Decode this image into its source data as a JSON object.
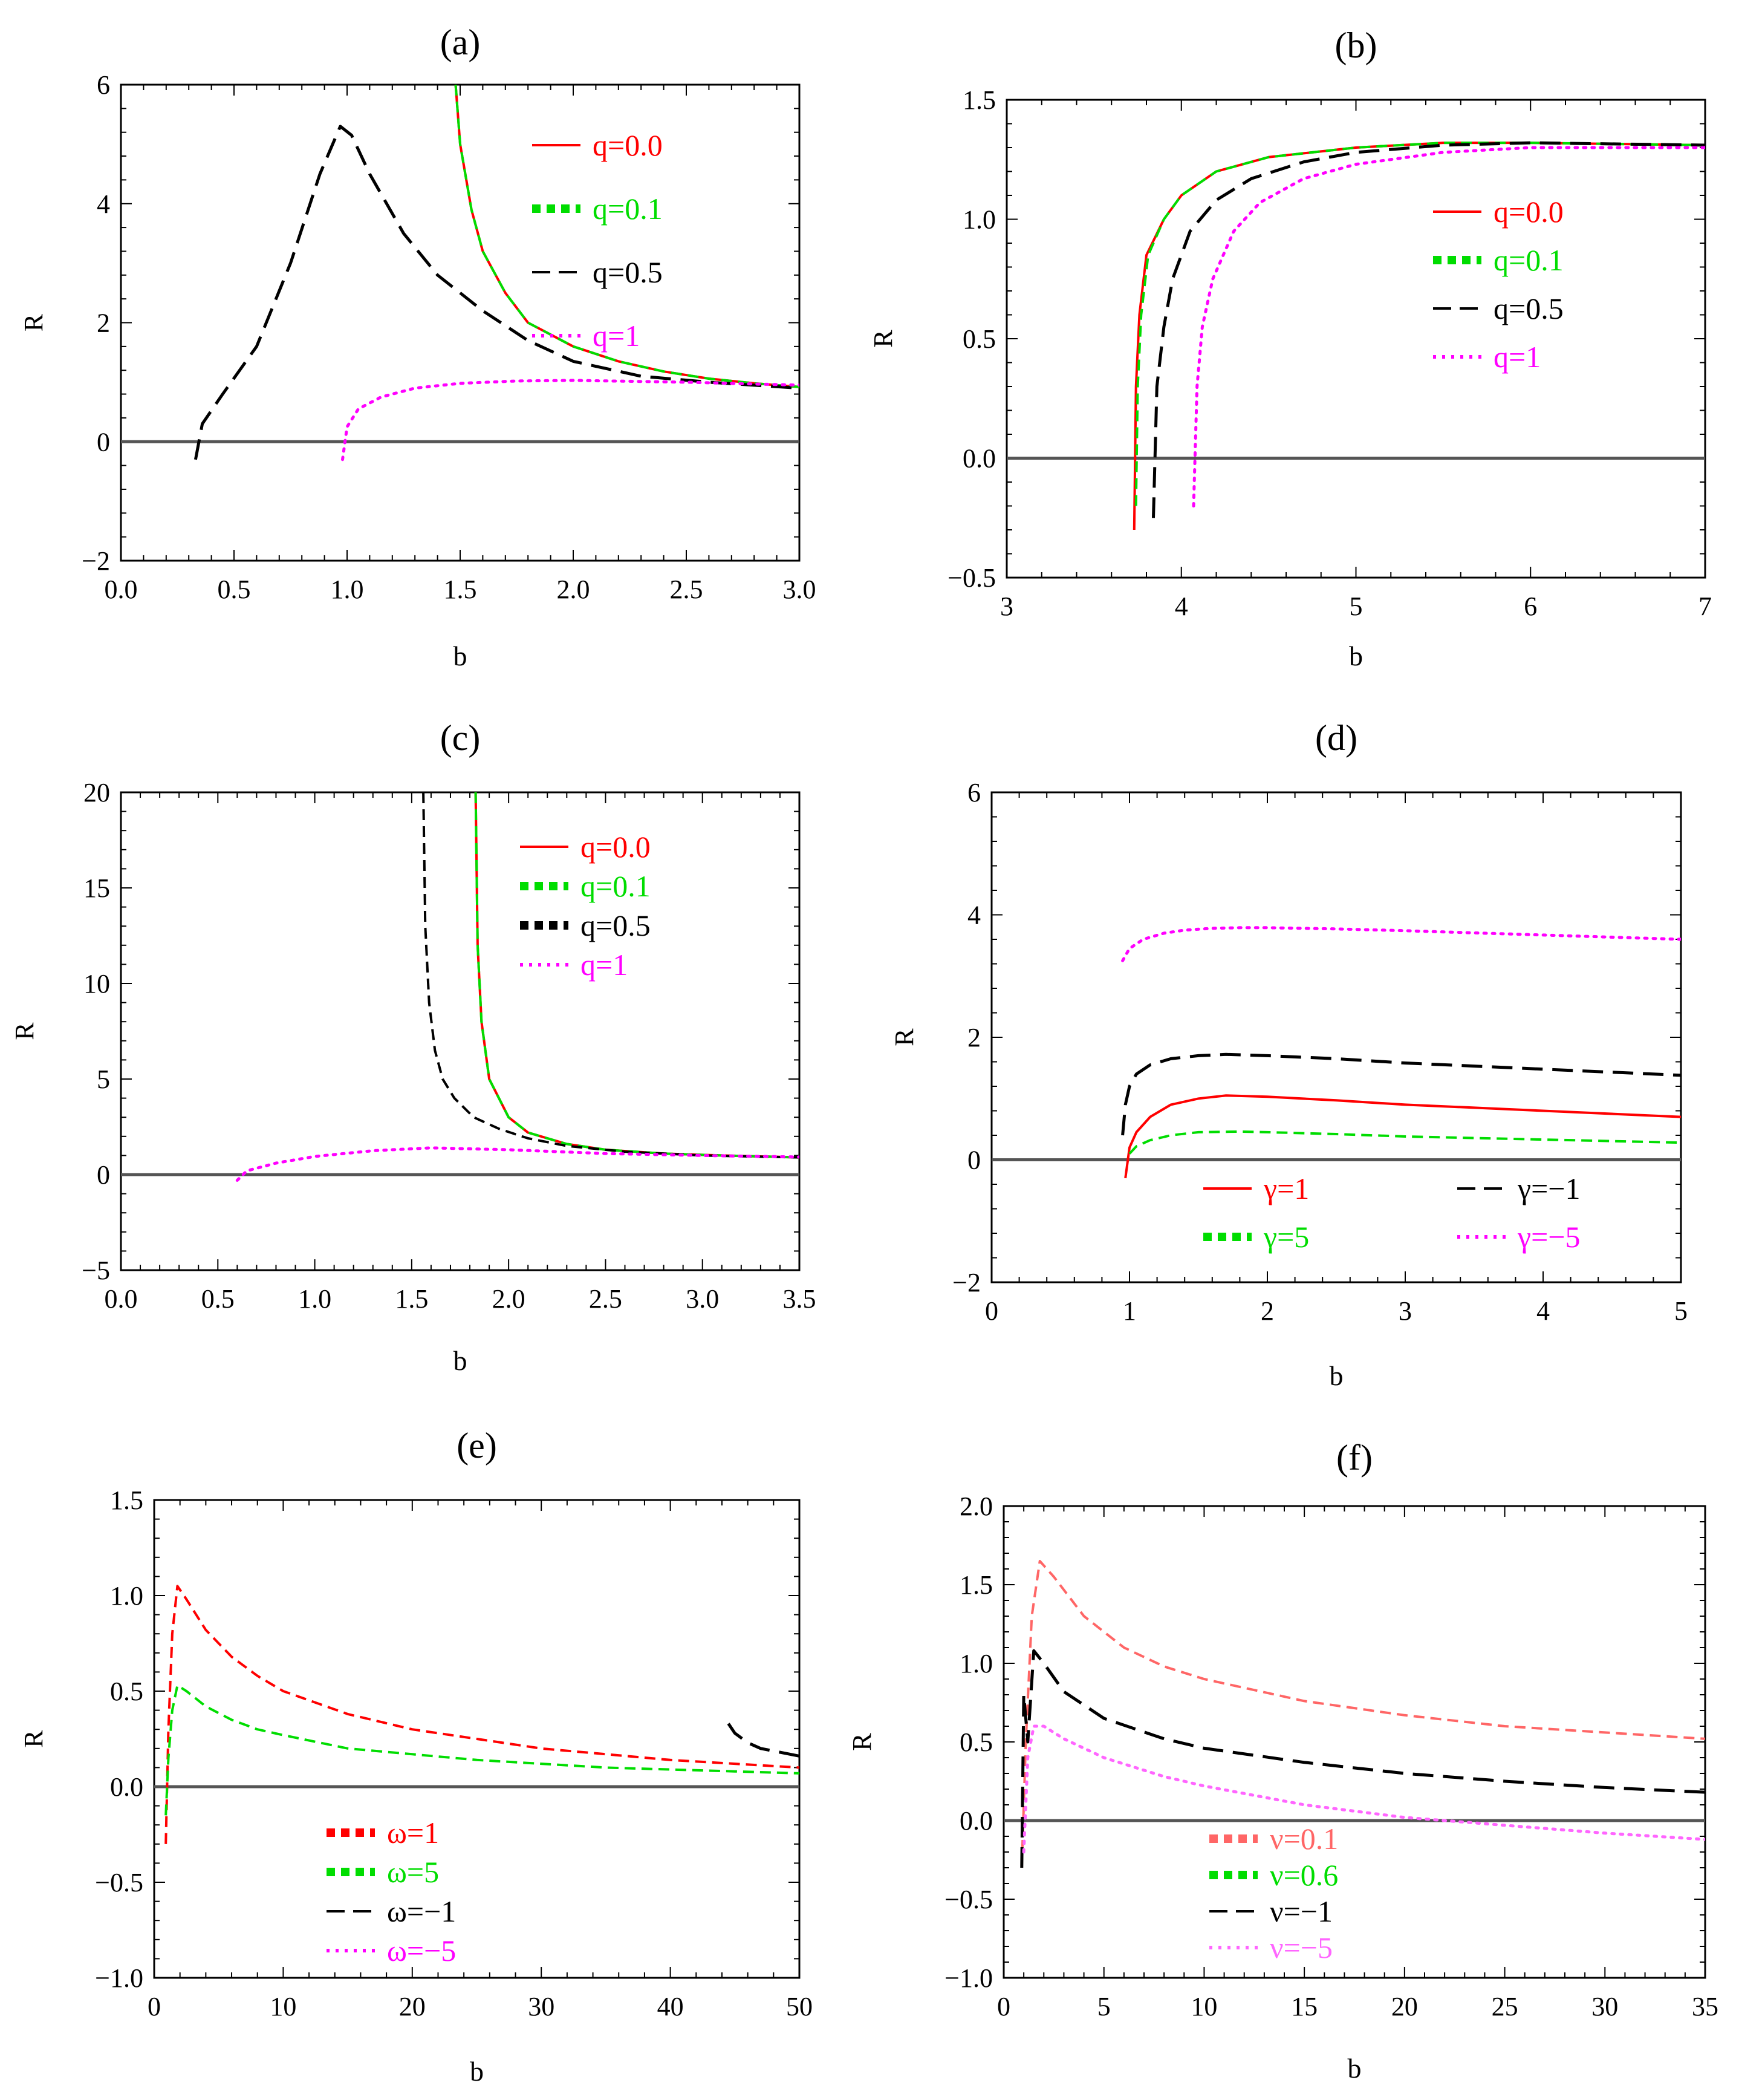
{
  "chart_data": [
    {
      "type": "line",
      "title": "(a)",
      "xlabel": "b",
      "ylabel": "R",
      "xlim": [
        0,
        3
      ],
      "ylim": [
        -2,
        6
      ],
      "xticks": [
        0.0,
        0.5,
        1.0,
        1.5,
        2.0,
        2.5,
        3.0
      ],
      "yticks": [
        -2,
        0,
        2,
        4,
        6
      ],
      "xtick_labels": [
        "0.0",
        "0.5",
        "1.0",
        "1.5",
        "2.0",
        "2.5",
        "3.0"
      ],
      "ytick_labels": [
        "−2",
        "0",
        "2",
        "4",
        "6"
      ],
      "legend_position": "top-right",
      "series": [
        {
          "name": "q=0.0",
          "color": "#ff0000",
          "style": "solid",
          "x": [
            1.48,
            1.5,
            1.55,
            1.6,
            1.7,
            1.8,
            2.0,
            2.2,
            2.4,
            2.6,
            2.8,
            3.0
          ],
          "y": [
            6.0,
            5.0,
            3.9,
            3.2,
            2.5,
            2.0,
            1.6,
            1.35,
            1.18,
            1.06,
            0.98,
            0.92
          ]
        },
        {
          "name": "q=0.1",
          "color": "#00dd00",
          "style": "dashed",
          "x": [
            1.48,
            1.5,
            1.55,
            1.6,
            1.7,
            1.8,
            2.0,
            2.2,
            2.4,
            2.6,
            2.8,
            3.0
          ],
          "y": [
            6.0,
            5.0,
            3.9,
            3.2,
            2.5,
            2.0,
            1.6,
            1.35,
            1.18,
            1.06,
            0.98,
            0.92
          ]
        },
        {
          "name": "q=0.5",
          "color": "#000000",
          "style": "longdash",
          "x": [
            0.33,
            0.36,
            0.45,
            0.6,
            0.75,
            0.88,
            0.97,
            1.02,
            1.1,
            1.25,
            1.4,
            1.6,
            1.8,
            2.0,
            2.3,
            2.6,
            3.0
          ],
          "y": [
            -0.3,
            0.3,
            0.8,
            1.6,
            3.0,
            4.5,
            5.3,
            5.15,
            4.5,
            3.5,
            2.8,
            2.2,
            1.7,
            1.35,
            1.1,
            1.0,
            0.9
          ]
        },
        {
          "name": "q=1",
          "color": "#ff00ff",
          "style": "dotted",
          "x": [
            0.98,
            1.0,
            1.05,
            1.15,
            1.3,
            1.5,
            1.75,
            2.0,
            2.5,
            3.0
          ],
          "y": [
            -0.3,
            0.25,
            0.55,
            0.75,
            0.9,
            0.98,
            1.02,
            1.03,
            1.0,
            0.95
          ]
        }
      ]
    },
    {
      "type": "line",
      "title": "(b)",
      "xlabel": "b",
      "ylabel": "R",
      "xlim": [
        3,
        7
      ],
      "ylim": [
        -0.5,
        1.5
      ],
      "xticks": [
        3,
        4,
        5,
        6,
        7
      ],
      "yticks": [
        -0.5,
        0.0,
        0.5,
        1.0,
        1.5
      ],
      "xtick_labels": [
        "3",
        "4",
        "5",
        "6",
        "7"
      ],
      "ytick_labels": [
        "−0.5",
        "0.0",
        "0.5",
        "1.0",
        "1.5"
      ],
      "legend_position": "right",
      "series": [
        {
          "name": "q=0.0",
          "color": "#ff0000",
          "style": "solid",
          "x": [
            3.73,
            3.74,
            3.76,
            3.8,
            3.9,
            4.0,
            4.2,
            4.5,
            5.0,
            5.5,
            6.0,
            7.0
          ],
          "y": [
            -0.3,
            0.3,
            0.6,
            0.85,
            1.0,
            1.1,
            1.2,
            1.26,
            1.3,
            1.32,
            1.32,
            1.31
          ]
        },
        {
          "name": "q=0.1",
          "color": "#00dd00",
          "style": "dashed",
          "x": [
            3.74,
            3.75,
            3.77,
            3.81,
            3.9,
            4.0,
            4.2,
            4.5,
            5.0,
            5.5,
            6.0,
            7.0
          ],
          "y": [
            -0.2,
            0.3,
            0.6,
            0.85,
            1.0,
            1.1,
            1.2,
            1.26,
            1.3,
            1.32,
            1.32,
            1.31
          ]
        },
        {
          "name": "q=0.5",
          "color": "#000000",
          "style": "longdash",
          "x": [
            3.84,
            3.86,
            3.9,
            3.95,
            4.05,
            4.2,
            4.4,
            4.7,
            5.0,
            5.5,
            6.0,
            7.0
          ],
          "y": [
            -0.25,
            0.3,
            0.55,
            0.75,
            0.95,
            1.08,
            1.17,
            1.24,
            1.28,
            1.31,
            1.32,
            1.31
          ]
        },
        {
          "name": "q=1",
          "color": "#ff00ff",
          "style": "dotted",
          "x": [
            4.07,
            4.09,
            4.12,
            4.18,
            4.3,
            4.45,
            4.7,
            5.0,
            5.5,
            6.0,
            7.0
          ],
          "y": [
            -0.2,
            0.3,
            0.55,
            0.75,
            0.95,
            1.07,
            1.17,
            1.23,
            1.28,
            1.3,
            1.3
          ]
        }
      ]
    },
    {
      "type": "line",
      "title": "(c)",
      "xlabel": "b",
      "ylabel": "R",
      "xlim": [
        0,
        3.5
      ],
      "ylim": [
        -5,
        20
      ],
      "xticks": [
        0.0,
        0.5,
        1.0,
        1.5,
        2.0,
        2.5,
        3.0,
        3.5
      ],
      "yticks": [
        -5,
        0,
        5,
        10,
        15,
        20
      ],
      "xtick_labels": [
        "0.0",
        "0.5",
        "1.0",
        "1.5",
        "2.0",
        "2.5",
        "3.0",
        "3.5"
      ],
      "ytick_labels": [
        "−5",
        "0",
        "5",
        "10",
        "15",
        "20"
      ],
      "legend_position": "top-right",
      "series": [
        {
          "name": "q=0.0",
          "color": "#ff0000",
          "style": "solid",
          "x": [
            1.83,
            1.84,
            1.86,
            1.9,
            2.0,
            2.1,
            2.3,
            2.5,
            2.8,
            3.1,
            3.5
          ],
          "y": [
            20,
            12,
            8,
            5,
            3,
            2.2,
            1.6,
            1.3,
            1.1,
            1.0,
            0.9
          ]
        },
        {
          "name": "q=0.1",
          "color": "#00dd00",
          "style": "dashed",
          "x": [
            1.83,
            1.84,
            1.86,
            1.9,
            2.0,
            2.1,
            2.3,
            2.5,
            2.8,
            3.1,
            3.5
          ],
          "y": [
            20,
            12,
            8,
            5,
            3,
            2.2,
            1.6,
            1.3,
            1.1,
            1.0,
            0.9
          ]
        },
        {
          "name": "q=0.5",
          "color": "#000000",
          "style": "dashed",
          "x": [
            1.56,
            1.57,
            1.59,
            1.62,
            1.66,
            1.72,
            1.82,
            1.95,
            2.1,
            2.3,
            2.6,
            3.0,
            3.5
          ],
          "y": [
            20,
            13,
            9,
            6.5,
            5,
            4,
            3,
            2.4,
            1.9,
            1.5,
            1.2,
            1.0,
            0.9
          ]
        },
        {
          "name": "q=1",
          "color": "#ff00ff",
          "style": "dotted",
          "x": [
            0.6,
            0.65,
            0.8,
            1.0,
            1.3,
            1.6,
            2.0,
            2.5,
            3.0,
            3.5
          ],
          "y": [
            -0.3,
            0.2,
            0.6,
            0.95,
            1.25,
            1.4,
            1.3,
            1.1,
            1.0,
            0.92
          ]
        }
      ]
    },
    {
      "type": "line",
      "title": "(d)",
      "xlabel": "b",
      "ylabel": "R",
      "xlim": [
        0,
        5
      ],
      "ylim": [
        -2,
        6
      ],
      "xticks": [
        0,
        1,
        2,
        3,
        4,
        5
      ],
      "yticks": [
        -2,
        0,
        2,
        4,
        6
      ],
      "xtick_labels": [
        "0",
        "1",
        "2",
        "3",
        "4",
        "5"
      ],
      "ytick_labels": [
        "−2",
        "0",
        "2",
        "4",
        "6"
      ],
      "legend_position": "bottom",
      "series": [
        {
          "name": "γ=1",
          "color": "#ff0000",
          "style": "solid",
          "x": [
            0.97,
            1.0,
            1.05,
            1.15,
            1.3,
            1.5,
            1.7,
            2.0,
            2.5,
            3.0,
            3.5,
            4.0,
            5.0
          ],
          "y": [
            -0.3,
            0.2,
            0.45,
            0.7,
            0.9,
            1.0,
            1.05,
            1.03,
            0.97,
            0.9,
            0.85,
            0.8,
            0.7
          ]
        },
        {
          "name": "γ=−1",
          "color": "#000000",
          "style": "longdash",
          "x": [
            0.95,
            0.97,
            1.0,
            1.05,
            1.15,
            1.3,
            1.5,
            1.7,
            2.0,
            2.5,
            3.0,
            4.0,
            5.0
          ],
          "y": [
            0.4,
            0.9,
            1.2,
            1.4,
            1.55,
            1.65,
            1.7,
            1.72,
            1.7,
            1.65,
            1.58,
            1.48,
            1.38
          ]
        },
        {
          "name": "γ=5",
          "color": "#00dd00",
          "style": "dashed",
          "x": [
            1.0,
            1.05,
            1.15,
            1.3,
            1.5,
            1.8,
            2.0,
            2.5,
            3.0,
            4.0,
            5.0
          ],
          "y": [
            0.1,
            0.22,
            0.32,
            0.4,
            0.45,
            0.46,
            0.45,
            0.42,
            0.38,
            0.33,
            0.28
          ]
        },
        {
          "name": "γ=−5",
          "color": "#ff00ff",
          "style": "dotted",
          "x": [
            0.95,
            1.0,
            1.1,
            1.25,
            1.4,
            1.6,
            1.8,
            2.0,
            2.5,
            3.0,
            4.0,
            5.0
          ],
          "y": [
            3.25,
            3.45,
            3.6,
            3.7,
            3.75,
            3.78,
            3.79,
            3.79,
            3.77,
            3.74,
            3.67,
            3.6
          ]
        }
      ]
    },
    {
      "type": "line",
      "title": "(e)",
      "xlabel": "b",
      "ylabel": "R",
      "xlim": [
        0,
        50
      ],
      "ylim": [
        -1.0,
        1.5
      ],
      "xticks": [
        0,
        10,
        20,
        30,
        40,
        50
      ],
      "yticks": [
        -1.0,
        -0.5,
        0.0,
        0.5,
        1.0,
        1.5
      ],
      "xtick_labels": [
        "0",
        "10",
        "20",
        "30",
        "40",
        "50"
      ],
      "ytick_labels": [
        "−1.0",
        "−0.5",
        "0.0",
        "0.5",
        "1.0",
        "1.5"
      ],
      "legend_position": "bottom-left",
      "series": [
        {
          "name": "ω=1",
          "color": "#ff0000",
          "style": "dashed",
          "x": [
            0.9,
            1.1,
            1.4,
            1.8,
            2.5,
            4,
            6,
            8,
            10,
            15,
            20,
            25,
            30,
            35,
            40,
            45,
            50
          ],
          "y": [
            -0.3,
            0.3,
            0.8,
            1.05,
            0.98,
            0.82,
            0.68,
            0.58,
            0.5,
            0.38,
            0.3,
            0.25,
            0.2,
            0.17,
            0.14,
            0.12,
            0.1
          ]
        },
        {
          "name": "ω=5",
          "color": "#00dd00",
          "style": "dashed",
          "x": [
            0.9,
            1.1,
            1.4,
            1.8,
            2.5,
            4,
            6,
            8,
            10,
            15,
            20,
            25,
            30,
            35,
            40,
            45,
            50
          ],
          "y": [
            -0.15,
            0.15,
            0.4,
            0.53,
            0.5,
            0.42,
            0.35,
            0.3,
            0.27,
            0.2,
            0.17,
            0.14,
            0.12,
            0.1,
            0.09,
            0.08,
            0.07
          ]
        },
        {
          "name": "ω=−1",
          "color": "#000000",
          "style": "longdash",
          "x": [
            44.5,
            45,
            46,
            47,
            48.5,
            50
          ],
          "y": [
            0.33,
            0.28,
            0.23,
            0.2,
            0.18,
            0.16
          ]
        },
        {
          "name": "ω=−5",
          "color": "#ff00ff",
          "style": "dotted",
          "x": [],
          "y": []
        }
      ]
    },
    {
      "type": "line",
      "title": "(f)",
      "xlabel": "b",
      "ylabel": "R",
      "xlim": [
        0,
        35
      ],
      "ylim": [
        -1.0,
        2.0
      ],
      "xticks": [
        0,
        5,
        10,
        15,
        20,
        25,
        30,
        35
      ],
      "yticks": [
        -1.0,
        -0.5,
        0.0,
        0.5,
        1.0,
        1.5,
        2.0
      ],
      "xtick_labels": [
        "0",
        "5",
        "10",
        "15",
        "20",
        "25",
        "30",
        "35"
      ],
      "ytick_labels": [
        "−1.0",
        "−0.5",
        "0.0",
        "0.5",
        "1.0",
        "1.5",
        "2.0"
      ],
      "legend_position": "bottom-left",
      "series": [
        {
          "name": "ν=0.1",
          "color": "#ff6666",
          "style": "dashed",
          "x": [
            0.9,
            1.1,
            1.4,
            1.8,
            2.5,
            4,
            6,
            8,
            10,
            15,
            20,
            25,
            30,
            35
          ],
          "y": [
            -0.3,
            0.5,
            1.3,
            1.65,
            1.55,
            1.3,
            1.1,
            0.98,
            0.9,
            0.76,
            0.67,
            0.6,
            0.56,
            0.52
          ]
        },
        {
          "name": "ν=0.6",
          "color": "#00dd00",
          "style": "dashed",
          "x": [],
          "y": []
        },
        {
          "name": "ν=−1",
          "color": "#000000",
          "style": "longdash",
          "x": [
            0.9,
            1.0,
            1.2,
            1.5,
            2.0,
            3,
            5,
            8,
            10,
            15,
            20,
            25,
            30,
            35
          ],
          "y": [
            -0.3,
            0.8,
            0.5,
            1.08,
            1.0,
            0.82,
            0.65,
            0.52,
            0.46,
            0.37,
            0.3,
            0.25,
            0.21,
            0.18
          ]
        },
        {
          "name": "ν=−5",
          "color": "#ff66ff",
          "style": "dotted",
          "x": [
            1.0,
            1.2,
            1.5,
            2.0,
            3,
            5,
            8,
            10,
            15,
            20,
            25,
            30,
            35
          ],
          "y": [
            -0.2,
            0.4,
            0.6,
            0.6,
            0.52,
            0.4,
            0.28,
            0.22,
            0.1,
            0.02,
            -0.03,
            -0.08,
            -0.12
          ]
        }
      ]
    }
  ]
}
